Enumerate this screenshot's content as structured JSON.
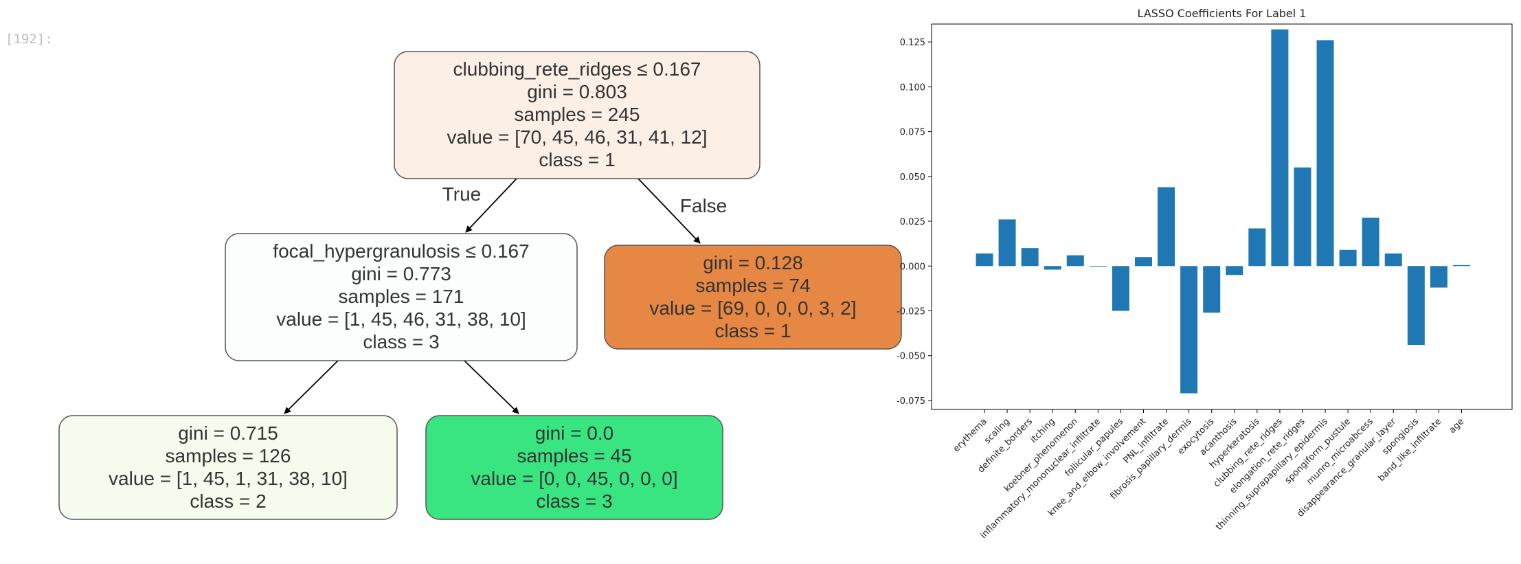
{
  "cell": {
    "prompt": "[192]:"
  },
  "tree": {
    "nodes": [
      {
        "id": "root",
        "lines": [
          "clubbing_rete_ridges ≤ 0.167",
          "gini = 0.803",
          "samples = 245",
          "value = [70, 45, 46, 31, 41, 12]",
          "class = 1"
        ],
        "fill": "#fcefe6"
      },
      {
        "id": "left",
        "lines": [
          "focal_hypergranulosis ≤ 0.167",
          "gini = 0.773",
          "samples = 171",
          "value = [1, 45, 46, 31, 38, 10]",
          "class = 3"
        ],
        "fill": "#fbfefd"
      },
      {
        "id": "right",
        "lines": [
          "gini = 0.128",
          "samples = 74",
          "value = [69, 0, 0, 0, 3, 2]",
          "class = 1"
        ],
        "fill": "#e68844"
      },
      {
        "id": "leftleft",
        "lines": [
          "gini = 0.715",
          "samples = 126",
          "value = [1, 45, 1, 31, 38, 10]",
          "class = 2"
        ],
        "fill": "#f6fced"
      },
      {
        "id": "leftright",
        "lines": [
          "gini = 0.0",
          "samples = 45",
          "value = [0, 0, 45, 0, 0, 0]",
          "class = 3"
        ],
        "fill": "#39e581"
      }
    ],
    "edge_labels": {
      "true": "True",
      "false": "False"
    }
  },
  "chart_data": {
    "type": "bar",
    "title": "LASSO Coefficients For Label 1",
    "xlabel": "",
    "ylabel": "",
    "color": "#1f77b4",
    "ylim": [
      -0.08,
      0.135
    ],
    "yticks": [
      "0.125",
      "0.100",
      "0.075",
      "0.050",
      "0.025",
      "0.000",
      "-0.025",
      "-0.050",
      "-0.075"
    ],
    "categories": [
      "erythema",
      "scaling",
      "definite_borders",
      "itching",
      "koebner_phenomenon",
      "inflammatory_mononuclear_infiltrate",
      "follicular_papules",
      "knee_and_elbow_involvement",
      "PNL_infiltrate",
      "fibrosis_papillary_dermis",
      "exocytosis",
      "acanthosis",
      "hyperkeratosis",
      "clubbing_rete_ridges",
      "elongation_rete_ridges",
      "thinning_suprapapillary_epidermis",
      "spongiform_pustule",
      "munro_microabcess",
      "disappearance_granular_layer",
      "spongiosis",
      "band_like_infiltrate",
      "age"
    ],
    "values": [
      0.007,
      0.026,
      0.01,
      -0.002,
      0.006,
      0.0,
      -0.025,
      0.005,
      0.044,
      -0.071,
      -0.026,
      -0.005,
      0.021,
      0.132,
      0.055,
      0.126,
      0.009,
      0.027,
      0.007,
      -0.044,
      -0.012,
      0.0005
    ]
  }
}
